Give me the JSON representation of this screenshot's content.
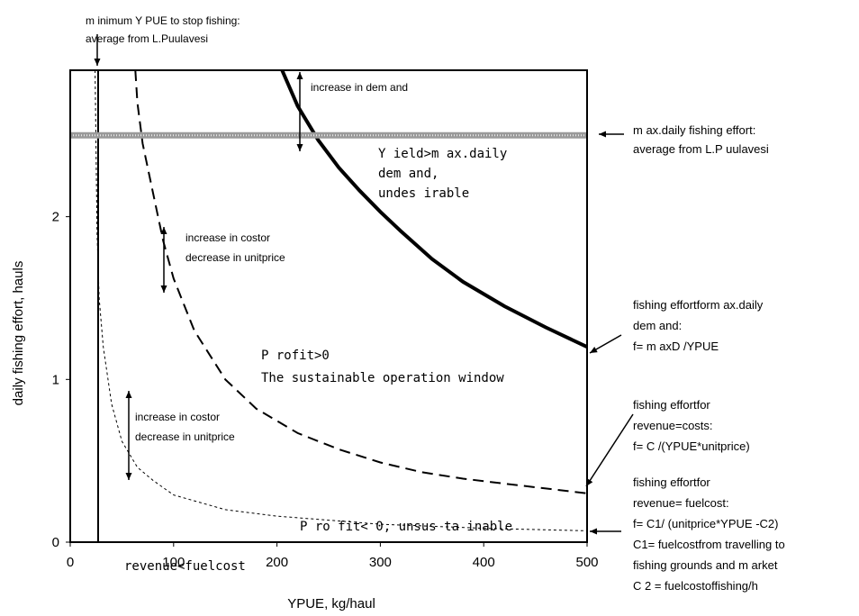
{
  "chart_data": {
    "type": "line",
    "xlabel": "YPUE, kg/haul",
    "ylabel": "daily fishing effort, hauls",
    "xlim": [
      0,
      500
    ],
    "ylim": [
      0,
      2.9
    ],
    "xticks": [
      "0",
      "100",
      "200",
      "300",
      "400",
      "500"
    ],
    "yticks": [
      "0",
      "1",
      "2"
    ],
    "grid": false,
    "legend": "none",
    "series": [
      {
        "style": "thick-solid",
        "points": [
          [
            205,
            2.9
          ],
          [
            220,
            2.68
          ],
          [
            240,
            2.47
          ],
          [
            260,
            2.3
          ],
          [
            280,
            2.16
          ],
          [
            300,
            2.03
          ],
          [
            320,
            1.91
          ],
          [
            350,
            1.74
          ],
          [
            380,
            1.6
          ],
          [
            420,
            1.45
          ],
          [
            460,
            1.32
          ],
          [
            500,
            1.2
          ]
        ]
      },
      {
        "style": "long-dash",
        "points": [
          [
            63,
            2.9
          ],
          [
            65,
            2.7
          ],
          [
            70,
            2.45
          ],
          [
            80,
            2.15
          ],
          [
            90,
            1.85
          ],
          [
            100,
            1.62
          ],
          [
            120,
            1.3
          ],
          [
            150,
            1.0
          ],
          [
            180,
            0.82
          ],
          [
            220,
            0.67
          ],
          [
            260,
            0.57
          ],
          [
            300,
            0.49
          ],
          [
            340,
            0.43
          ],
          [
            380,
            0.39
          ],
          [
            420,
            0.36
          ],
          [
            460,
            0.33
          ],
          [
            500,
            0.3
          ]
        ]
      },
      {
        "style": "short-dash",
        "points": [
          [
            24,
            2.9
          ],
          [
            25,
            2.4
          ],
          [
            26,
            1.9
          ],
          [
            28,
            1.5
          ],
          [
            32,
            1.2
          ],
          [
            40,
            0.85
          ],
          [
            50,
            0.62
          ],
          [
            65,
            0.46
          ],
          [
            80,
            0.38
          ],
          [
            100,
            0.29
          ],
          [
            150,
            0.2
          ],
          [
            200,
            0.16
          ],
          [
            300,
            0.11
          ],
          [
            400,
            0.085
          ],
          [
            500,
            0.07
          ]
        ]
      }
    ],
    "reference_lines": [
      {
        "orientation": "vertical",
        "style": "solid",
        "x": 27
      },
      {
        "orientation": "horizontal",
        "style": "thick-grey",
        "y": 2.5
      }
    ],
    "in_plot_labels": {
      "yield": "Y ield>m ax.daily\ndem and,\nundes irable",
      "profit_pos_1": "P rofit>0",
      "profit_pos_2": "The sustainable operation window",
      "profit_neg": "P ro fit< 0, unsus ta inable",
      "revenue": "revenue<fuelcost",
      "demand_increase": "increase in dem and",
      "cost_increase_1": "increase in costor\ndecrease in unitprice",
      "cost_increase_2": "increase in costor\ndecrease in unitprice"
    },
    "callouts": {
      "min_ypue": "m inimum Y PUE to stop fishing:\naverage from L.Puulavesi",
      "max_effort": "m ax.daily fishing effort:\naverage from L.P uulavesi",
      "demand_curve": "fishing effortform ax.daily\ndem and:\nf= m axD /YPUE",
      "costs_curve": "fishing effortfor\nrevenue=costs:\nf= C /(YPUE*unitprice)",
      "fuel_curve": "fishing effortfor\nrevenue= fuelcost:\nf= C1/ (unitprice*YPUE -C2)\nC1= fuelcostfrom travelling to\nfishing grounds and m arket\nC 2 = fuelcostoffishing/h"
    }
  }
}
